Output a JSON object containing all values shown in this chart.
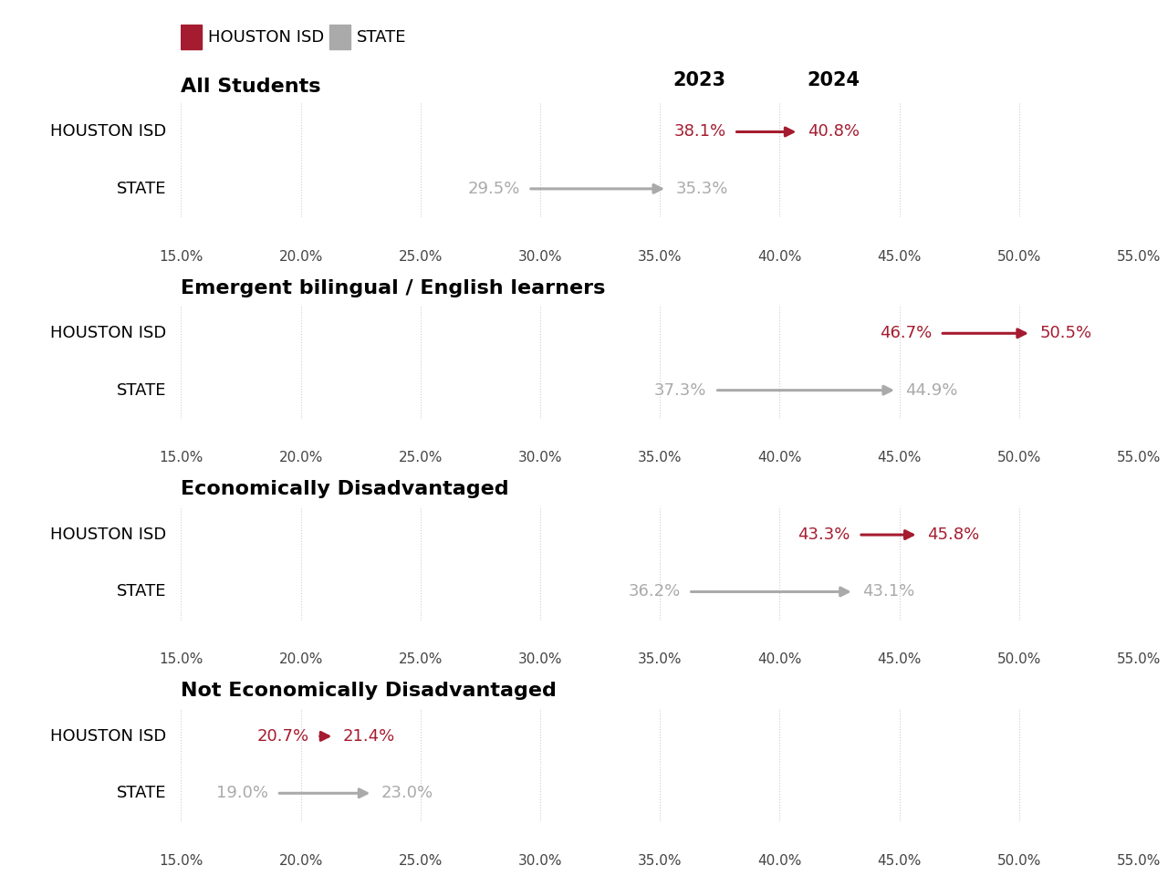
{
  "sections": [
    {
      "title": "All Students",
      "show_year_labels": true,
      "rows": [
        {
          "label": "HOUSTON ISD",
          "val2023": 38.1,
          "val2024": 40.8,
          "color": "#a51c30"
        },
        {
          "label": "STATE",
          "val2023": 29.5,
          "val2024": 35.3,
          "color": "#aaaaaa"
        }
      ]
    },
    {
      "title": "Emergent bilingual / English learners",
      "show_year_labels": false,
      "rows": [
        {
          "label": "HOUSTON ISD",
          "val2023": 46.7,
          "val2024": 50.5,
          "color": "#a51c30"
        },
        {
          "label": "STATE",
          "val2023": 37.3,
          "val2024": 44.9,
          "color": "#aaaaaa"
        }
      ]
    },
    {
      "title": "Economically Disadvantaged",
      "show_year_labels": false,
      "rows": [
        {
          "label": "HOUSTON ISD",
          "val2023": 43.3,
          "val2024": 45.8,
          "color": "#a51c30"
        },
        {
          "label": "STATE",
          "val2023": 36.2,
          "val2024": 43.1,
          "color": "#aaaaaa"
        }
      ]
    },
    {
      "title": "Not Economically Disadvantaged",
      "show_year_labels": false,
      "rows": [
        {
          "label": "HOUSTON ISD",
          "val2023": 20.7,
          "val2024": 21.4,
          "color": "#a51c30"
        },
        {
          "label": "STATE",
          "val2023": 19.0,
          "val2024": 23.0,
          "color": "#aaaaaa"
        }
      ]
    }
  ],
  "xmin": 15.0,
  "xmax": 55.0,
  "xticks": [
    15.0,
    20.0,
    25.0,
    30.0,
    35.0,
    40.0,
    45.0,
    50.0,
    55.0
  ],
  "background_color": "#ffffff",
  "legend_hisd_color": "#a51c30",
  "legend_state_color": "#aaaaaa",
  "title_fontsize": 16,
  "label_fontsize": 13,
  "tick_fontsize": 11,
  "value_fontsize": 13,
  "year_fontsize": 15
}
